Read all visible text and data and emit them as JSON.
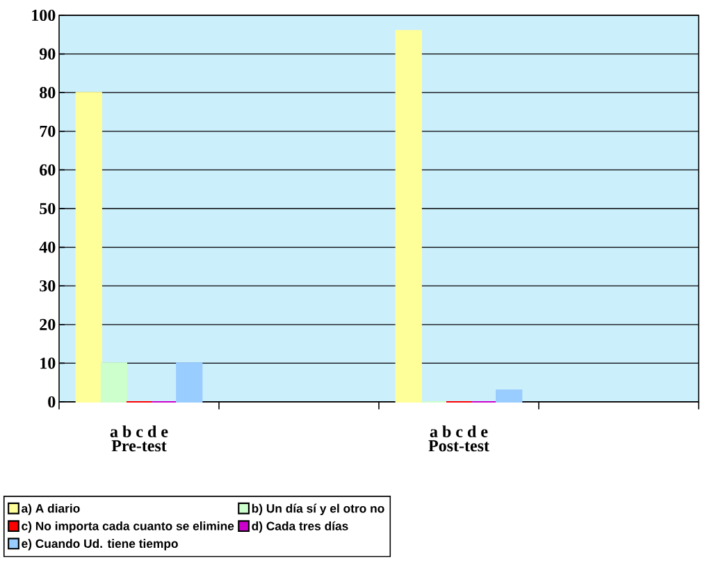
{
  "chart_data": {
    "type": "bar",
    "categories": [
      "Pre-test",
      null,
      "Post-test",
      null
    ],
    "series": [
      {
        "name": "a) A diario",
        "color": "#ffff99",
        "values": [
          80,
          null,
          96,
          null
        ]
      },
      {
        "name": "b) Un día sí y el otro no",
        "color": "#ccffcc",
        "values": [
          10,
          null,
          0,
          null
        ]
      },
      {
        "name": "c) No importa cada cuanto se elimine",
        "color": "#ff0000",
        "values": [
          0,
          null,
          0,
          null
        ]
      },
      {
        "name": "d) Cada tres días",
        "color": "#cc00cc",
        "values": [
          0,
          null,
          0,
          null
        ]
      },
      {
        "name": "e) Cuando Ud. tiene tiempo",
        "color": "#99ccff",
        "values": [
          10,
          null,
          3,
          null
        ]
      }
    ],
    "ylim": [
      0,
      100
    ],
    "yticks": [
      0,
      10,
      20,
      30,
      40,
      50,
      60,
      70,
      80,
      90,
      100
    ],
    "grid": "y",
    "legend": "bottom",
    "annotations": [
      "a b c d e",
      "a b c d e"
    ]
  }
}
